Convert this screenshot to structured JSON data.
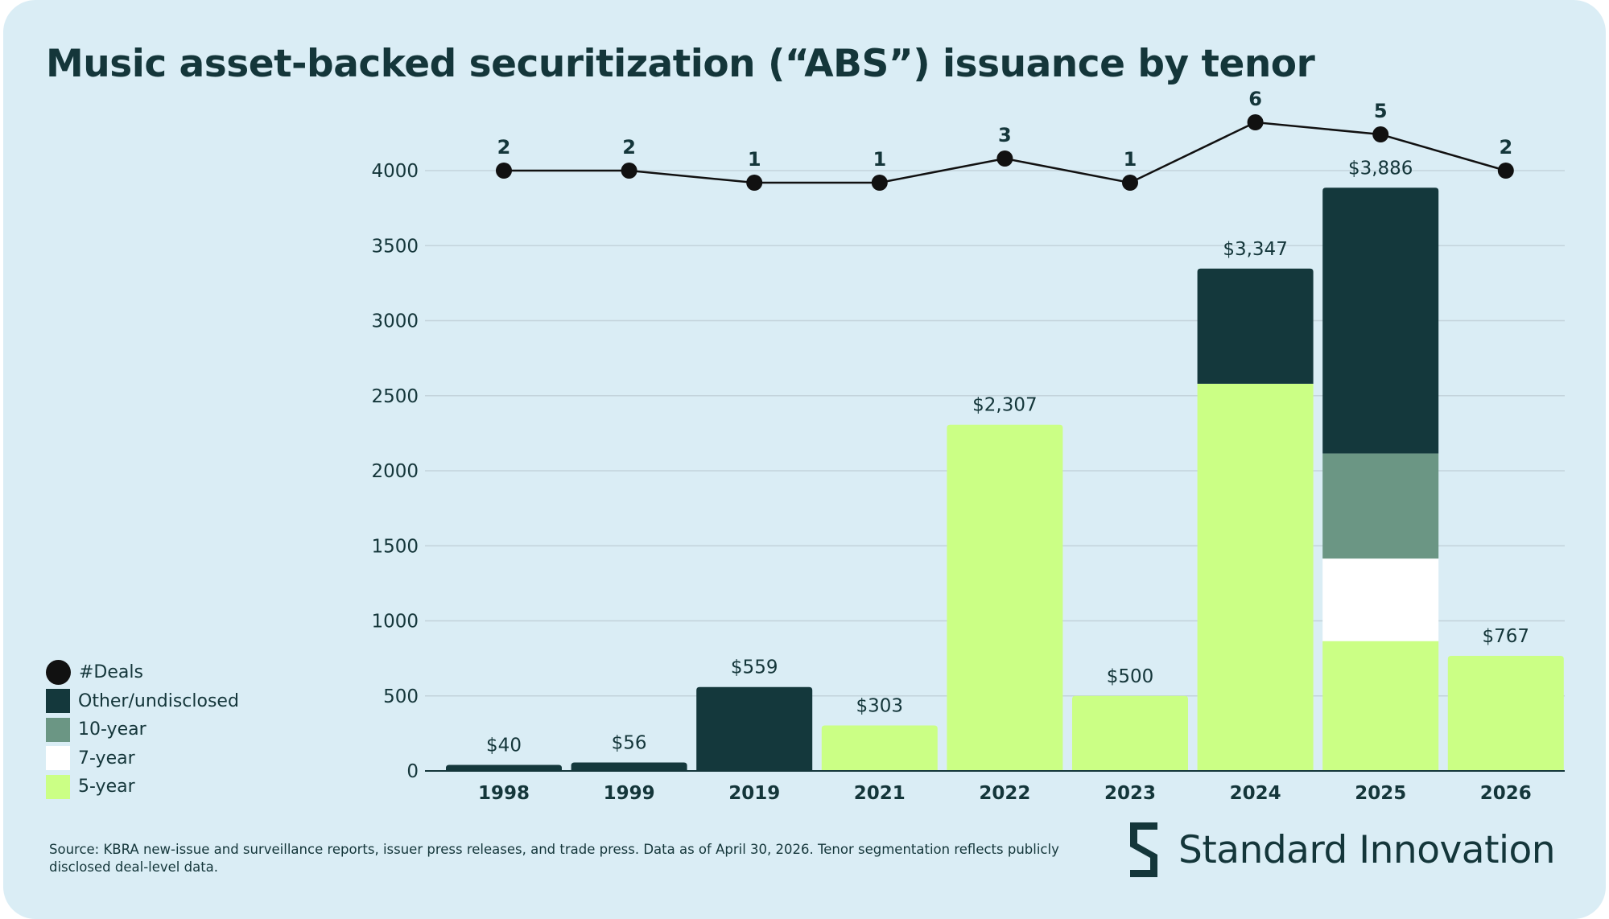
{
  "title": "Music asset-backed securitization (“ABS”) issuance by tenor",
  "colors": {
    "background": "#daedf5",
    "text": "#14363a",
    "other_undisclosed": "#14383c",
    "ten_year": "#6b9684",
    "seven_year": "#ffffff",
    "five_year": "#cbff85",
    "deals": "#111111",
    "grid": "#c3d3db"
  },
  "legend": [
    {
      "label": "#Deals",
      "key": "deals",
      "shape": "circle"
    },
    {
      "label": "Other/undisclosed",
      "key": "other_undisclosed",
      "shape": "square"
    },
    {
      "label": "10-year",
      "key": "ten_year",
      "shape": "square"
    },
    {
      "label": "7-year",
      "key": "seven_year",
      "shape": "square"
    },
    {
      "label": "5-year",
      "key": "five_year",
      "shape": "square"
    }
  ],
  "chart_data": {
    "type": "bar",
    "stacked": true,
    "categories": [
      "1998",
      "1999",
      "2019",
      "2021",
      "2022",
      "2023",
      "2024",
      "2025",
      "2026"
    ],
    "series": [
      {
        "name": "5-year",
        "key": "five_year",
        "values": [
          0,
          0,
          0,
          303,
          2307,
          500,
          2580,
          865,
          767
        ]
      },
      {
        "name": "7-year",
        "key": "seven_year",
        "values": [
          0,
          0,
          0,
          0,
          0,
          0,
          0,
          550,
          0
        ]
      },
      {
        "name": "10-year",
        "key": "ten_year",
        "values": [
          0,
          0,
          0,
          0,
          0,
          0,
          0,
          700,
          0
        ]
      },
      {
        "name": "Other/undisclosed",
        "key": "other_undisclosed",
        "values": [
          40,
          56,
          559,
          0,
          0,
          0,
          767,
          1771,
          0
        ]
      }
    ],
    "totals": [
      40,
      56,
      559,
      303,
      2307,
      500,
      3347,
      3886,
      767
    ],
    "total_labels": [
      "$40",
      "$56",
      "$559",
      "$303",
      "$2,307",
      "$500",
      "$3,347",
      "$3,886",
      "$767"
    ],
    "deals": {
      "name": "#Deals",
      "values": [
        2,
        2,
        1,
        1,
        3,
        1,
        6,
        5,
        2
      ]
    },
    "y_ticks": [
      0,
      500,
      1000,
      1500,
      2000,
      2500,
      3000,
      3500,
      4000
    ],
    "ylim": [
      0,
      4000
    ],
    "grid": true,
    "legend_position": "bottom-left",
    "xlabel": "",
    "ylabel": ""
  },
  "footer": {
    "source": "Source: KBRA new-issue and surveillance reports, issuer press releases, and trade press. Data as of April 30, 2026. Tenor segmentation reflects publicly disclosed deal-level data.",
    "brand": "Standard Innovation"
  }
}
